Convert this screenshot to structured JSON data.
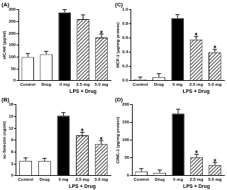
{
  "chart_data": [
    {
      "type": "bar",
      "title": "(A)",
      "ylabel": "sICAM (pg/ml)",
      "categories": [
        "Control",
        "Drug",
        "0 mg",
        "2.5 mg",
        "5.0 mg"
      ],
      "values": [
        100,
        112,
        288,
        260,
        182
      ],
      "errors": [
        15,
        12,
        12,
        18,
        15
      ],
      "annotations": [
        null,
        null,
        null,
        null,
        "*"
      ],
      "group": {
        "label": "LPS + Drug",
        "categories": [
          "0 mg",
          "2.5 mg",
          "5.0 mg"
        ]
      },
      "colors": [
        "#ffffff",
        "#ffffff",
        "#000000",
        "#404040",
        "#404040"
      ],
      "ylim": [
        0,
        300
      ],
      "yticks": [
        0,
        50,
        100,
        150,
        200,
        250,
        300
      ],
      "grid": false
    },
    {
      "type": "bar",
      "title": "(B)",
      "ylabel": "sc-Selectin (ng/ml)",
      "categories": [
        "Control",
        "Drug",
        "0 mg",
        "2.5 mg",
        "5.0 mg"
      ],
      "values": [
        3.8,
        3.7,
        15.2,
        10.2,
        8.0
      ],
      "errors": [
        0.7,
        0.7,
        0.8,
        0.8,
        0.9
      ],
      "annotations": [
        null,
        null,
        null,
        "*",
        "*"
      ],
      "group": {
        "label": "LPS + Drug",
        "categories": [
          "0 mg",
          "2.5 mg",
          "5.0 mg"
        ]
      },
      "colors": [
        "#ffffff",
        "#ffffff",
        "#000000",
        "#404040",
        "#404040"
      ],
      "ylim": [
        0,
        18
      ],
      "yticks": [
        0,
        3,
        6,
        9,
        12,
        15,
        18
      ],
      "grid": false
    },
    {
      "type": "bar",
      "title": "(C)",
      "ylabel": "MCP-1 (μg/mg protein)",
      "categories": [
        "Control",
        "Drug",
        "0 mg",
        "2.5 mg",
        "5.0 mg"
      ],
      "values": [
        0.02,
        0.05,
        0.88,
        0.58,
        0.4
      ],
      "errors": [
        0.03,
        0.05,
        0.05,
        0.04,
        0.04
      ],
      "annotations": [
        null,
        null,
        null,
        "*",
        "*"
      ],
      "group": {
        "label": "LPS + Drug",
        "categories": [
          "0 mg",
          "2.5 mg",
          "5.0 mg"
        ]
      },
      "colors": [
        "#ffffff",
        "#ffffff",
        "#000000",
        "#404040",
        "#404040"
      ],
      "ylim": [
        0,
        1
      ],
      "yticks": [
        {
          "value": 0,
          "label": "0.0"
        },
        0.2,
        0.4,
        0.6,
        0.8,
        {
          "value": 1,
          "label": "1.0"
        }
      ],
      "grid": false
    },
    {
      "type": "bar",
      "title": "(D)",
      "ylabel": "CINC-1 (pg/mg protein)",
      "categories": [
        "Control",
        "Drug",
        "0 mg",
        "2.5 mg",
        "5.0 mg"
      ],
      "values": [
        12,
        8,
        175,
        52,
        30
      ],
      "errors": [
        8,
        8,
        12,
        8,
        7
      ],
      "annotations": [
        null,
        null,
        null,
        "*",
        "*"
      ],
      "group": {
        "label": "LPS + Drug",
        "categories": [
          "0 mg",
          "2.5 mg",
          "5.0 mg"
        ]
      },
      "colors": [
        "#ffffff",
        "#ffffff",
        "#000000",
        "#404040",
        "#404040"
      ],
      "ylim": [
        0,
        200
      ],
      "yticks": [
        0,
        50,
        100,
        150,
        200
      ],
      "grid": false
    }
  ]
}
